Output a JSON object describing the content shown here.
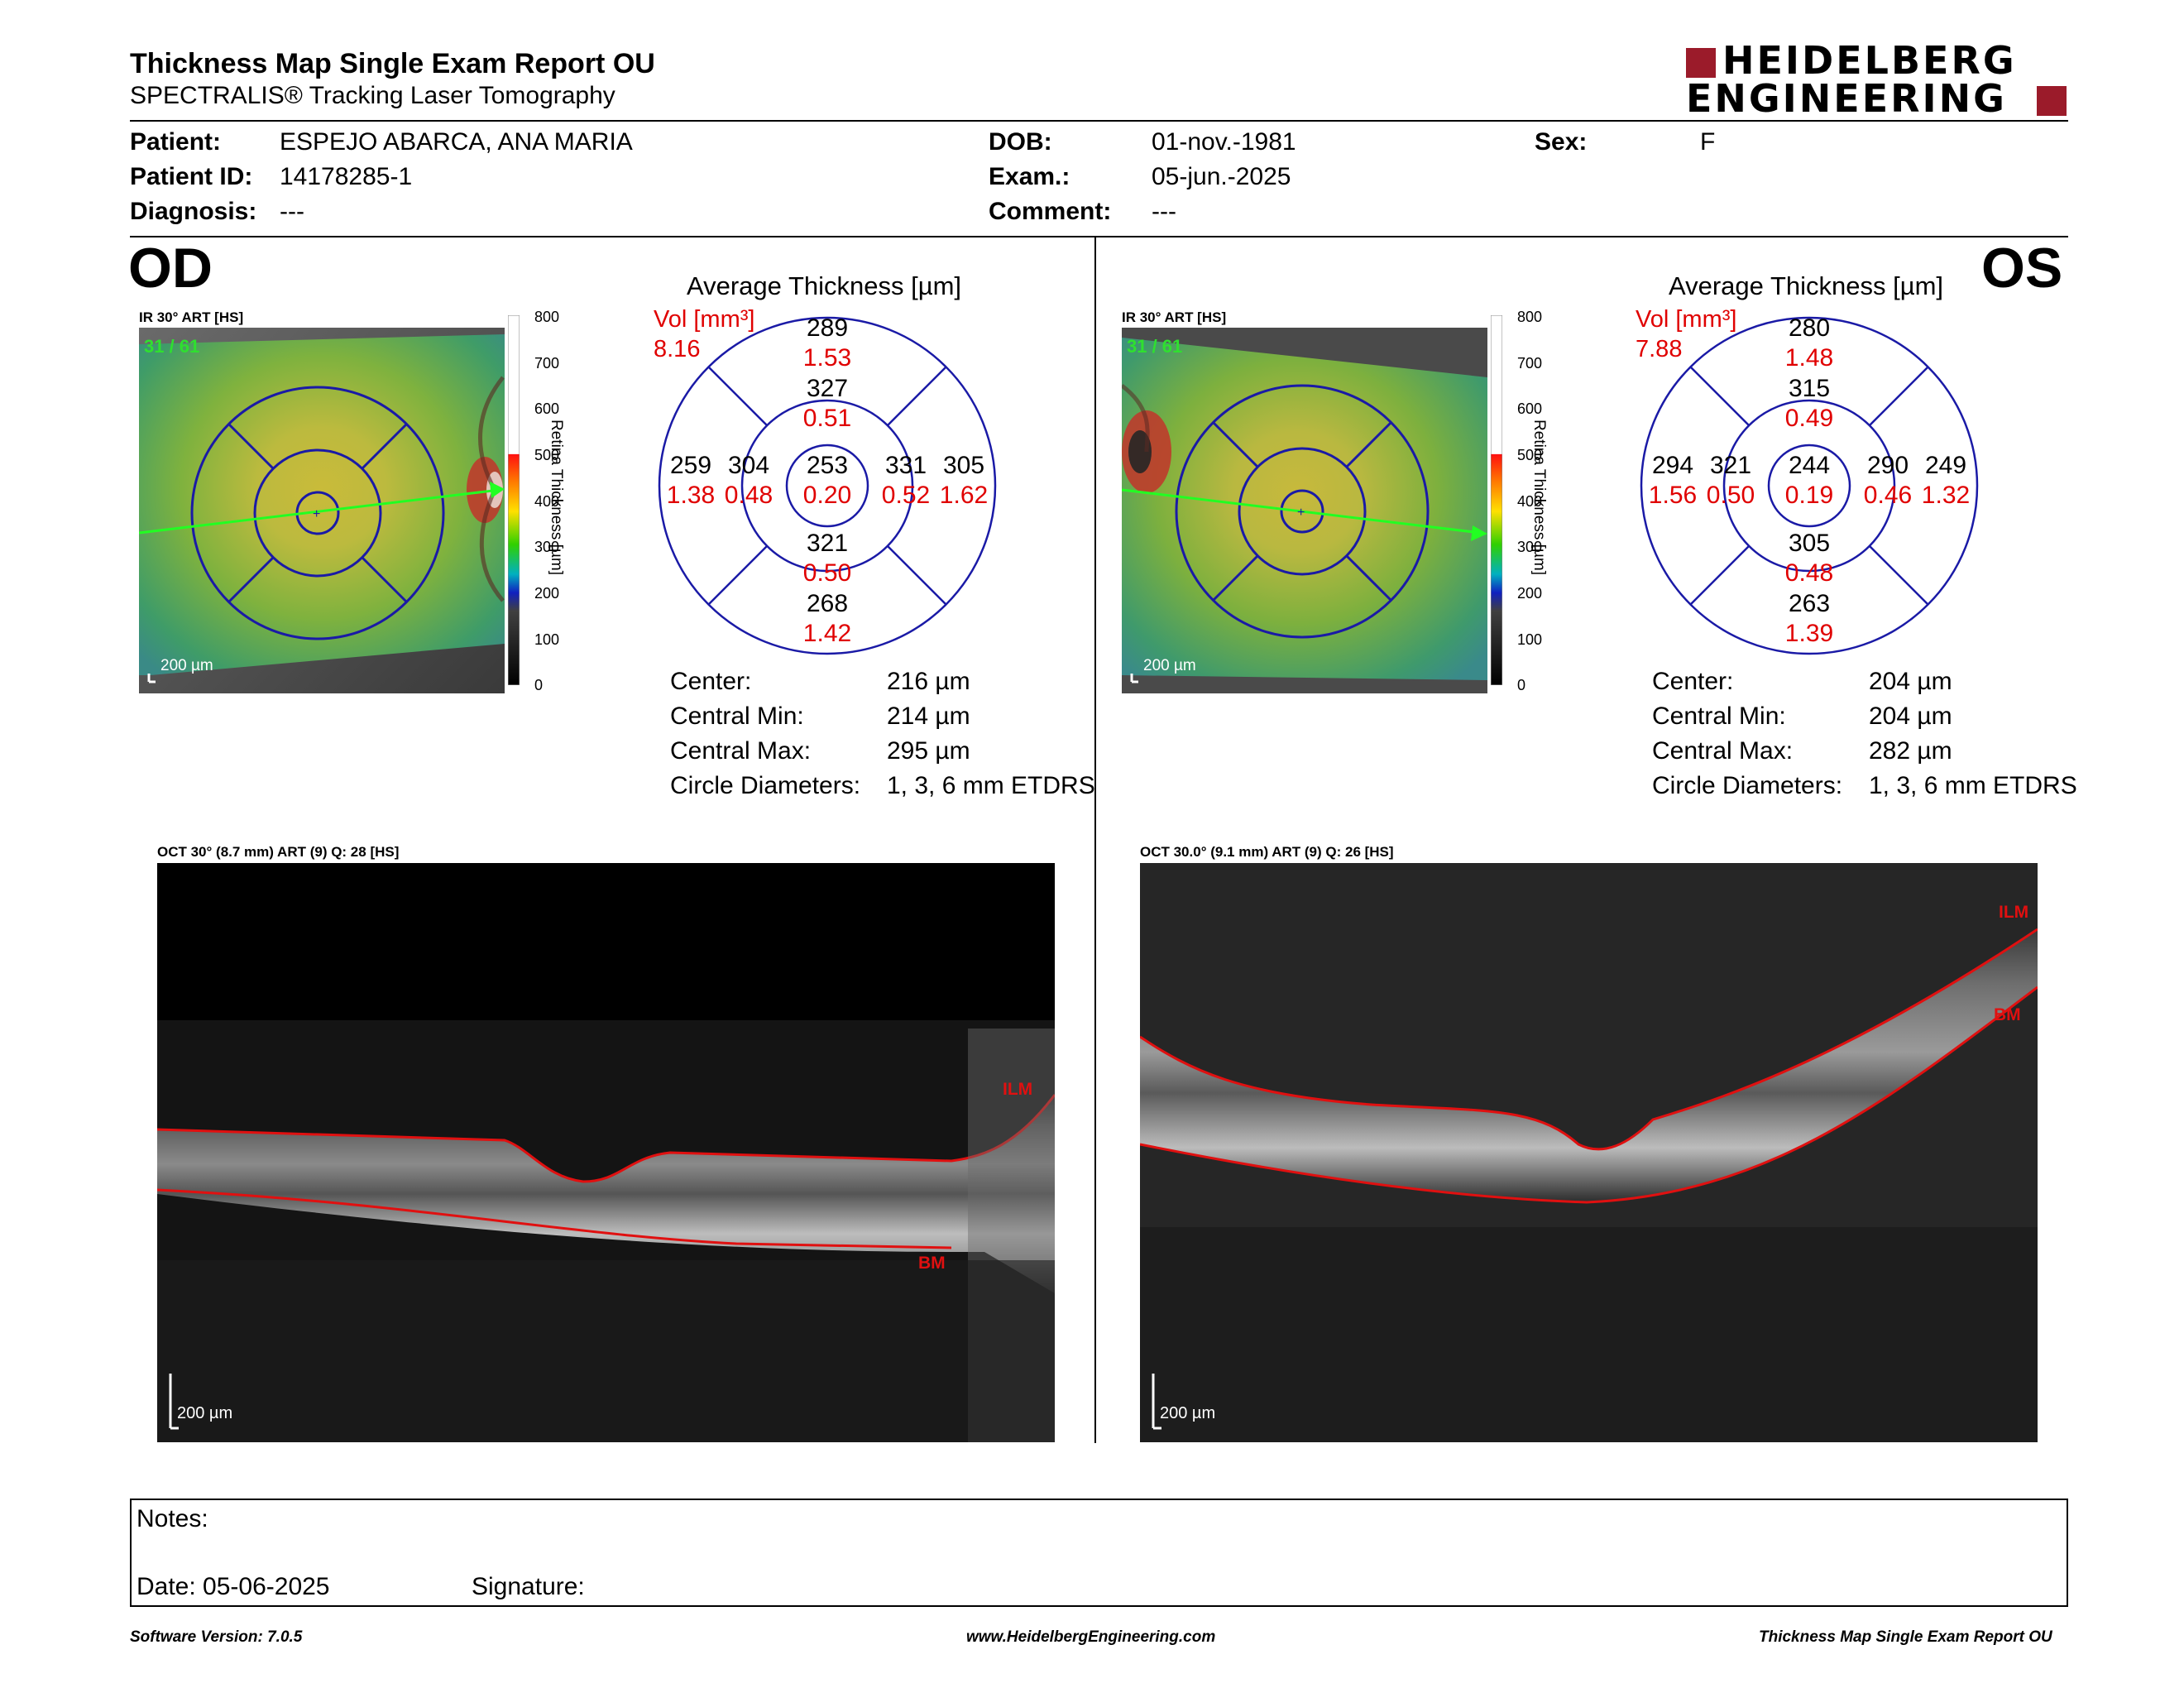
{
  "header": {
    "title": "Thickness Map Single Exam Report OU",
    "subtitle": "SPECTRALIS® Tracking Laser Tomography",
    "logo_line1": "HEIDELBERG",
    "logo_line2": "ENGINEERING"
  },
  "patient": {
    "patient_label": "Patient:",
    "patient_value": "ESPEJO ABARCA, ANA MARIA",
    "id_label": "Patient ID:",
    "id_value": "14178285-1",
    "diag_label": "Diagnosis:",
    "diag_value": "---",
    "dob_label": "DOB:",
    "dob_value": "01-nov.-1981",
    "exam_label": "Exam.:",
    "exam_value": "05-jun.-2025",
    "comment_label": "Comment:",
    "comment_value": "---",
    "sex_label": "Sex:",
    "sex_value": "F"
  },
  "scale": {
    "ticks": [
      "800",
      "700",
      "600",
      "500",
      "400",
      "300",
      "200",
      "100",
      "0"
    ],
    "axis_label": "Retina Thickness [µm]"
  },
  "od": {
    "eye": "OD",
    "ir_label": "IR 30° ART [HS]",
    "frame": "31 / 61",
    "scalebar": "200 µm",
    "avg_title": "Average Thickness [µm]",
    "vol_label": "Vol [mm³]",
    "vol_value": "8.16",
    "grid": {
      "outer_sup": "289",
      "outer_sup_vol": "1.53",
      "inner_sup": "327",
      "inner_sup_vol": "0.51",
      "outer_temp": "259",
      "outer_temp_vol": "1.38",
      "inner_temp": "304",
      "inner_temp_vol": "0.48",
      "center": "253",
      "center_vol": "0.20",
      "inner_nas": "331",
      "inner_nas_vol": "0.52",
      "outer_nas": "305",
      "outer_nas_vol": "1.62",
      "inner_inf": "321",
      "inner_inf_vol": "0.50",
      "outer_inf": "268",
      "outer_inf_vol": "1.42"
    },
    "stats": {
      "center_label": "Center:",
      "center_value": "216 µm",
      "min_label": "Central Min:",
      "min_value": "214 µm",
      "max_label": "Central Max:",
      "max_value": "295 µm",
      "diam_label": "Circle Diameters:",
      "diam_value": "1, 3, 6 mm ETDRS"
    },
    "oct_label": "OCT 30° (8.7 mm) ART (9) Q: 28 [HS]",
    "ilm": "ILM",
    "bm": "BM",
    "oct_scalebar": "200 µm"
  },
  "os": {
    "eye": "OS",
    "ir_label": "IR 30° ART [HS]",
    "frame": "31 / 61",
    "scalebar": "200 µm",
    "avg_title": "Average Thickness [µm]",
    "vol_label": "Vol [mm³]",
    "vol_value": "7.88",
    "grid": {
      "outer_sup": "280",
      "outer_sup_vol": "1.48",
      "inner_sup": "315",
      "inner_sup_vol": "0.49",
      "outer_temp": "294",
      "outer_temp_vol": "1.56",
      "inner_temp": "321",
      "inner_temp_vol": "0.50",
      "center": "244",
      "center_vol": "0.19",
      "inner_nas": "290",
      "inner_nas_vol": "0.46",
      "outer_nas": "249",
      "outer_nas_vol": "1.32",
      "inner_inf": "305",
      "inner_inf_vol": "0.48",
      "outer_inf": "263",
      "outer_inf_vol": "1.39"
    },
    "stats": {
      "center_label": "Center:",
      "center_value": "204 µm",
      "min_label": "Central Min:",
      "min_value": "204 µm",
      "max_label": "Central Max:",
      "max_value": "282 µm",
      "diam_label": "Circle Diameters:",
      "diam_value": "1, 3, 6 mm ETDRS"
    },
    "oct_label": "OCT 30.0° (9.1 mm) ART (9) Q: 26 [HS]",
    "ilm": "ILM",
    "bm": "BM",
    "oct_scalebar": "200 µm"
  },
  "notes": {
    "notes_label": "Notes:",
    "date_label": "Date: 05-06-2025",
    "signature_label": "Signature:"
  },
  "footer": {
    "left": "Software Version: 7.0.5",
    "center": "www.HeidelbergEngineering.com",
    "right": "Thickness Map Single Exam Report OU"
  },
  "colors": {
    "accent_red": "#e00000",
    "grid_blue": "#1a1aa6",
    "logo_red": "#9b1b2a",
    "frame_green": "#00e000"
  }
}
